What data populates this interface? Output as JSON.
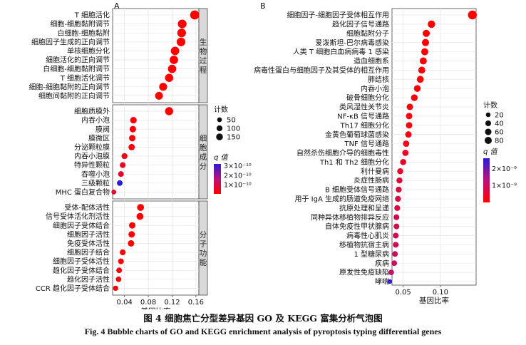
{
  "figure": {
    "caption_cn": "图 4  细胞焦亡分型差异基因 GO 及 KEGG 富集分析气泡图",
    "caption_en": "Fig. 4  Bubble charts of GO and KEGG enrichment analysis of pyroptosis typing differential genes"
  },
  "colors": {
    "high_q": "#2b1cd6",
    "mid_q": "#b8127a",
    "low_q": "#ff0000",
    "panel_bg": "#ffffff",
    "grid": "#e6e6e6",
    "strip": "#d9d9d9"
  },
  "chart_data": [
    {
      "type": "scatter",
      "panel_label": "A",
      "xlabel": "基因比率",
      "ylabel": "",
      "xlim": [
        0.02,
        0.165
      ],
      "xticks": [
        0.04,
        0.08,
        0.12,
        0.16
      ],
      "xtick_labels": [
        "0.04",
        "0.08",
        "0.12",
        "0.16"
      ],
      "grid": true,
      "legend_position": "right",
      "size_legend": {
        "title": "计数",
        "values": [
          50,
          100,
          150
        ],
        "labels": [
          "50",
          "100",
          "150"
        ]
      },
      "color_legend": {
        "title": "q 值",
        "scale_max": 3.2e-10,
        "scale_min": 0,
        "ticks": [
          3e-10,
          2e-10,
          1e-10
        ],
        "tick_labels": [
          "3×10⁻¹⁰",
          "2×10⁻¹⁰",
          "1×10⁻¹⁰"
        ]
      },
      "facets": [
        {
          "label": "生物过程",
          "terms": [
            "T 细胞活化",
            "细胞-细胞黏附调节",
            "白细胞-细胞黏附",
            "细胞因子生成的正向调节",
            "单核细胞分化",
            "细胞活化的正向调节",
            "白细胞-细胞黏附调节",
            "T 细胞活化调节",
            "细胞-细胞黏附的正向调节",
            "细胞间黏附的正向调节"
          ],
          "x": [
            0.158,
            0.137,
            0.136,
            0.135,
            0.125,
            0.123,
            0.12,
            0.115,
            0.105,
            0.098
          ],
          "count": [
            155,
            135,
            134,
            133,
            123,
            121,
            118,
            113,
            104,
            97
          ],
          "q": [
            2e-13,
            2e-13,
            2e-13,
            2e-13,
            3e-13,
            3e-13,
            4e-13,
            5e-13,
            8e-13,
            1e-12
          ]
        },
        {
          "label": "细胞成分",
          "terms": [
            "细胞质膜外",
            "内吞小泡",
            "膜阀",
            "膜微区",
            "分泌颗粒膜",
            "内吞小泡膜",
            "特异性颗粒",
            "吞噬小泡",
            "三级颗粒",
            "MHC 蛋白复合物"
          ],
          "x": [
            0.115,
            0.055,
            0.054,
            0.053,
            0.052,
            0.04,
            0.037,
            0.034,
            0.032,
            0.022
          ],
          "count": [
            112,
            54,
            53,
            52,
            51,
            38,
            35,
            33,
            31,
            16
          ],
          "q": [
            2e-12,
            1e-11,
            1.2e-11,
            1.3e-11,
            2e-11,
            3e-11,
            4e-11,
            6e-11,
            3.2e-10,
            5e-11
          ]
        },
        {
          "label": "分子功能",
          "terms": [
            "受体-配体活性",
            "信号受体活化剂活性",
            "细胞因子受体结合",
            "细胞因子活性",
            "免疫受体活性",
            "细胞因子结合",
            "细胞因子受体活性",
            "趋化因子受体结合",
            "趋化因子活性",
            "CCR 趋化因子受体结合"
          ],
          "x": [
            0.067,
            0.066,
            0.053,
            0.052,
            0.051,
            0.037,
            0.034,
            0.031,
            0.03,
            0.025
          ],
          "count": [
            66,
            65,
            52,
            51,
            50,
            36,
            33,
            30,
            29,
            23
          ],
          "q": [
            5e-13,
            5e-13,
            1e-12,
            1e-12,
            2e-12,
            5e-12,
            6e-12,
            8e-12,
            1e-11,
            2e-11
          ]
        }
      ]
    },
    {
      "type": "scatter",
      "panel_label": "B",
      "xlabel": "基因比率",
      "ylabel": "",
      "xlim": [
        0.035,
        0.148
      ],
      "xticks": [
        0.05,
        0.1
      ],
      "xtick_labels": [
        "0.05",
        "0.10"
      ],
      "grid": true,
      "legend_position": "right",
      "size_legend": {
        "title": "计数",
        "values": [
          20,
          40,
          60,
          80
        ],
        "labels": [
          "20",
          "40",
          "60",
          "80"
        ]
      },
      "color_legend": {
        "title": "q 值",
        "scale_max": 2.6e-09,
        "scale_min": 0,
        "ticks": [
          2e-09,
          1e-09
        ],
        "tick_labels": [
          "2×10⁻⁹",
          "1×10⁻⁹"
        ]
      },
      "terms": [
        "细胞因子-细胞因子受体相互作用",
        "趋化因子信号通路",
        "细胞黏附分子",
        "爱泼斯坦-巴尔病毒感染",
        "人类 T 细胞白血病病毒 1 感染",
        "造血细胞系",
        "病毒性蛋白与细胞因子及其受体的相互作用",
        "肺结核",
        "内吞小泡",
        "破骨细胞分化",
        "类风湿性关节炎",
        "NF-κB 信号通路",
        "Th17 细胞分化",
        "金黄色葡萄球菌感染",
        "TNF 信号通路",
        "自然杀伤细胞介导的细胞毒性",
        "Th1 和 Th2 细胞分化",
        "利什曼病",
        "炎症性肠病",
        "B 细胞受体信号通路",
        "用于 IgA 生成的肠道免疫网络",
        "抗原处理和呈递",
        "同种异体移植物排异反应",
        "自体免疫性甲状腺病",
        "病毒性心肌炎",
        "移植物抗宿主病",
        "1 型糖尿病",
        "疾病",
        "原发性免疫缺陷",
        "哮喘"
      ],
      "x": [
        0.143,
        0.088,
        0.081,
        0.08,
        0.079,
        0.077,
        0.075,
        0.073,
        0.069,
        0.065,
        0.059,
        0.058,
        0.058,
        0.057,
        0.054,
        0.053,
        0.05,
        0.046,
        0.045,
        0.044,
        0.043,
        0.042,
        0.041,
        0.041,
        0.04,
        0.04,
        0.039,
        0.038,
        0.034,
        0.032
      ],
      "count": [
        92,
        55,
        50,
        49,
        48,
        47,
        46,
        45,
        42,
        40,
        36,
        35,
        35,
        34,
        33,
        32,
        30,
        28,
        27,
        26,
        26,
        25,
        24,
        24,
        24,
        24,
        23,
        22,
        20,
        10
      ],
      "q": [
        1e-12,
        1e-11,
        2e-11,
        3e-11,
        3e-11,
        4e-11,
        5e-11,
        6e-11,
        8e-11,
        1e-10,
        1.5e-10,
        1.5e-10,
        1.5e-10,
        2e-10,
        3e-10,
        4e-10,
        4e-10,
        5e-10,
        6e-10,
        6e-10,
        7e-10,
        7e-10,
        8e-10,
        8e-10,
        9e-10,
        9e-10,
        1e-09,
        1e-09,
        1.1e-09,
        2.5e-09
      ]
    }
  ]
}
